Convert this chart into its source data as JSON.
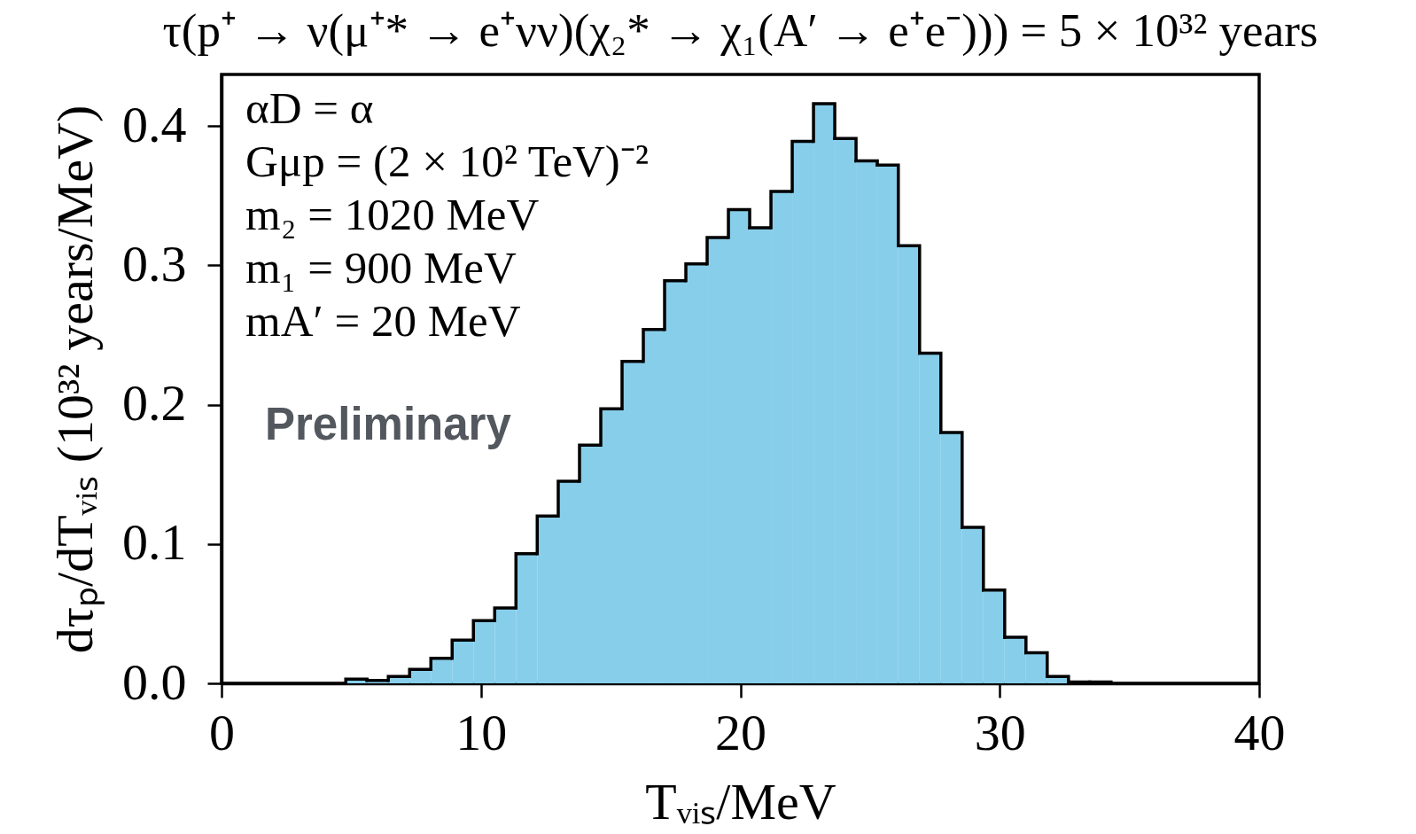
{
  "chart_data": {
    "type": "histogram",
    "title": "τ(p⁺ → ν(μ⁺* → e⁺νν)(χ₂* → χ₁(A′ → e⁺e⁻))) = 5 × 10³² years",
    "xlabel": "Tᵥᵢₛ/MeV",
    "ylabel": "dτₚ/dTᵥᵢₛ (10³² years/MeV)",
    "bins": [
      4.79,
      5.61,
      6.43,
      7.25,
      8.07,
      8.89,
      9.71,
      10.53,
      11.35,
      12.17,
      12.98,
      13.8,
      14.62,
      15.44,
      16.26,
      17.08,
      17.9,
      18.72,
      19.54,
      20.36,
      21.18,
      22.0,
      22.82,
      23.64,
      24.46,
      25.28,
      26.09,
      26.91,
      27.73,
      28.55,
      29.37,
      30.19,
      31.01,
      31.83,
      32.65,
      33.47,
      34.29
    ],
    "values": [
      0.003,
      0.002,
      0.005,
      0.01,
      0.018,
      0.031,
      0.045,
      0.054,
      0.093,
      0.12,
      0.145,
      0.171,
      0.197,
      0.231,
      0.254,
      0.289,
      0.301,
      0.32,
      0.34,
      0.327,
      0.353,
      0.389,
      0.416,
      0.391,
      0.375,
      0.372,
      0.314,
      0.237,
      0.18,
      0.112,
      0.067,
      0.033,
      0.022,
      0.005,
      0.001,
      0.001
    ],
    "color": "#87ceeb",
    "xlim": [
      0,
      40
    ],
    "ylim": [
      0,
      0.437
    ],
    "xticks": [
      0,
      10,
      20,
      30,
      40
    ],
    "yticks": [
      {
        "value": 0,
        "label": "0.0"
      },
      0.1,
      0.2,
      0.3,
      0.4
    ],
    "annotations": [
      "αD = α",
      "Gμp = (2 × 10² TeV)⁻²",
      "m₂ = 1020 MeV",
      "m₁ = 900 MeV",
      "mA′ = 20 MeV",
      "Preliminary"
    ]
  }
}
